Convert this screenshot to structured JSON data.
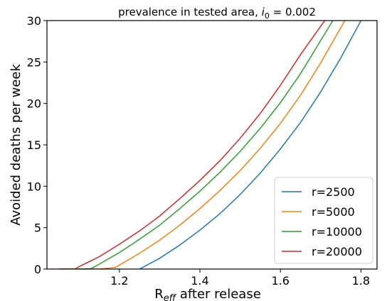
{
  "chart_data": {
    "type": "line",
    "title_main": "prevalence in tested area, ",
    "title_math": "i",
    "title_sub": "0",
    "title_value": " = 0.002",
    "xlabel_main": "R",
    "xlabel_sub": "eff",
    "xlabel_rest": " after release",
    "ylabel": "Avoided deaths per week",
    "xlim": [
      1.02,
      1.84
    ],
    "ylim": [
      0,
      30
    ],
    "xticks": [
      1.2,
      1.4,
      1.6,
      1.8
    ],
    "xtick_labels": [
      "1.2",
      "1.4",
      "1.6",
      "1.8"
    ],
    "yticks": [
      0,
      5,
      10,
      15,
      20,
      25,
      30
    ],
    "ytick_labels": [
      "0",
      "5",
      "10",
      "15",
      "20",
      "25",
      "30"
    ],
    "legend_position": "lower right",
    "series": [
      {
        "name": "r=2500",
        "color": "#1f77b4",
        "x": [
          1.25,
          1.3,
          1.35,
          1.4,
          1.45,
          1.5,
          1.55,
          1.6,
          1.65,
          1.7,
          1.75,
          1.8
        ],
        "y": [
          0,
          1.3,
          2.9,
          4.7,
          6.7,
          9.0,
          11.6,
          14.5,
          17.7,
          21.4,
          25.5,
          30
        ]
      },
      {
        "name": "r=5000",
        "color": "#ff7f0e",
        "x": [
          1.05,
          1.1,
          1.15,
          1.19,
          1.25,
          1.3,
          1.35,
          1.4,
          1.45,
          1.5,
          1.55,
          1.6,
          1.65,
          1.7,
          1.76
        ],
        "y": [
          0,
          0,
          0,
          0.2,
          1.9,
          3.5,
          5.3,
          7.3,
          9.5,
          11.9,
          14.6,
          17.6,
          21.0,
          24.9,
          30
        ]
      },
      {
        "name": "r=10000",
        "color": "#2ca02c",
        "x": [
          1.05,
          1.1,
          1.13,
          1.15,
          1.2,
          1.25,
          1.3,
          1.35,
          1.4,
          1.45,
          1.5,
          1.55,
          1.6,
          1.65,
          1.7,
          1.73
        ],
        "y": [
          0,
          0,
          0.05,
          0.6,
          2.0,
          3.6,
          5.3,
          7.3,
          9.4,
          11.7,
          14.2,
          17.0,
          20.1,
          23.6,
          27.6,
          30
        ]
      },
      {
        "name": "r=20000",
        "color": "#d62728",
        "x": [
          1.05,
          1.09,
          1.1,
          1.15,
          1.2,
          1.25,
          1.3,
          1.35,
          1.4,
          1.45,
          1.5,
          1.55,
          1.6,
          1.65,
          1.71
        ],
        "y": [
          0,
          0,
          0.3,
          1.5,
          3.0,
          4.6,
          6.4,
          8.5,
          10.7,
          13.1,
          15.8,
          18.8,
          22.2,
          25.9,
          30
        ]
      }
    ]
  }
}
